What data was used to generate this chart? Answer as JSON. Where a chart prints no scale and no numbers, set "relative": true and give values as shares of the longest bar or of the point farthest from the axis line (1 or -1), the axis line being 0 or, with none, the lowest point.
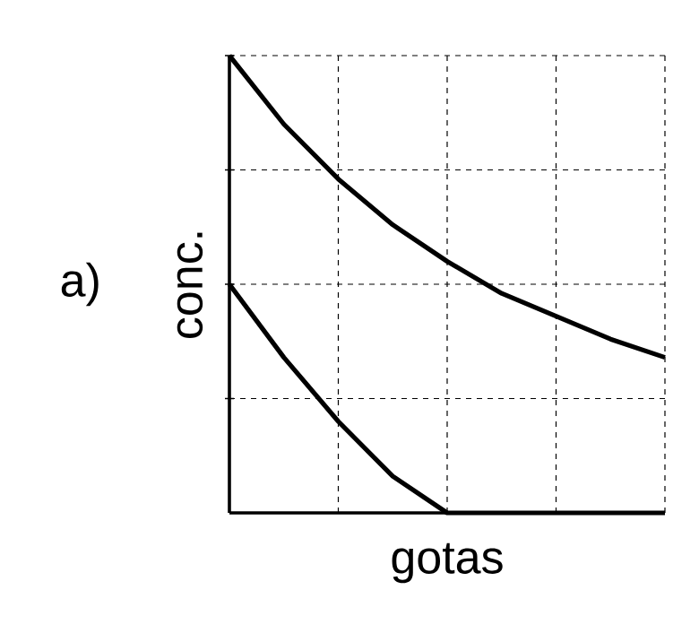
{
  "chart_data": {
    "type": "line",
    "relative": true,
    "xlabel": "gotas",
    "ylabel": "conc.",
    "annotations": [
      "a)"
    ],
    "grid": true,
    "marker": "none",
    "line_style": "solid",
    "categories": [
      null,
      null,
      null,
      null,
      null,
      null,
      null,
      null,
      null
    ],
    "series": [
      {
        "color": "#000000",
        "values": [
          1,
          0.85,
          0.73,
          0.63,
          0.55,
          0.48,
          0.43,
          0.38,
          0.34
        ]
      },
      {
        "color": "#000000",
        "values": [
          0.5,
          0.34,
          0.2,
          0.08,
          0,
          0,
          0,
          0,
          0
        ]
      }
    ]
  }
}
